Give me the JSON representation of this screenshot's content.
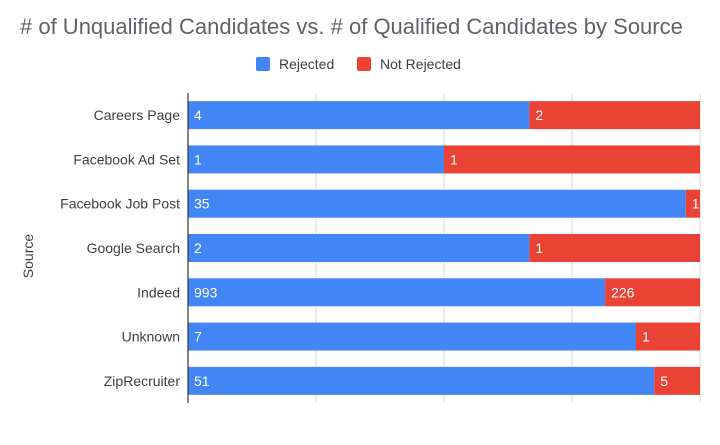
{
  "chart_data": {
    "type": "bar",
    "orientation": "horizontal",
    "stacked": "percent",
    "title": "# of Unqualified Candidates vs. # of Qualified Candidates by Source",
    "xlabel": "",
    "ylabel": "Source",
    "categories": [
      "Careers Page",
      "Facebook Ad Set",
      "Facebook Job Post",
      "Google Search",
      "Indeed",
      "Unknown",
      "ZipRecruiter"
    ],
    "series": [
      {
        "name": "Rejected",
        "values": [
          4,
          1,
          35,
          2,
          993,
          7,
          51
        ],
        "color": "#4285f4"
      },
      {
        "name": "Not Rejected",
        "values": [
          2,
          1,
          1,
          1,
          226,
          1,
          5
        ],
        "color": "#ea4335"
      }
    ],
    "grid": true,
    "legend_position": "top",
    "xlim": [
      0,
      1
    ]
  }
}
